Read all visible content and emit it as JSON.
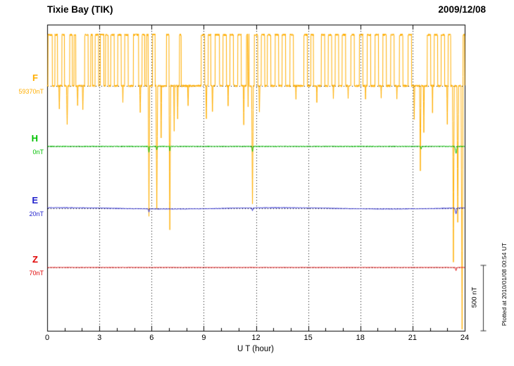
{
  "header": {
    "title": "Tixie Bay (TIK)",
    "date": "2009/12/08"
  },
  "note": "Plotted at 2010/01/08 00:54 UT",
  "chart_data": {
    "type": "line",
    "title": "Tixie Bay (TIK)",
    "date": "2009/12/08",
    "xlabel": "U T (hour)",
    "x_range": [
      0,
      24
    ],
    "x_ticks": [
      0,
      3,
      6,
      9,
      12,
      15,
      18,
      21,
      24
    ],
    "grid_hours": [
      3,
      6,
      9,
      12,
      15,
      18,
      21
    ],
    "scale_bar": {
      "label": "500 nT",
      "nT": 500
    },
    "series": [
      {
        "name": "F",
        "color": "#FFAE00",
        "baseline_label": "59370nT",
        "baseline_nT": 59370,
        "high_offset": 390,
        "noise": 8,
        "pulses": [
          [
            0.05,
            0.3
          ],
          [
            0.45,
            0.6
          ],
          [
            0.85,
            1.0
          ],
          [
            1.3,
            1.45
          ],
          [
            1.55,
            1.65
          ],
          [
            2.15,
            2.35
          ],
          [
            2.5,
            2.6
          ],
          [
            2.75,
            2.95
          ],
          [
            3.05,
            3.25
          ],
          [
            3.35,
            3.5
          ],
          [
            3.65,
            3.85
          ],
          [
            4.05,
            4.25
          ],
          [
            4.45,
            4.65
          ],
          [
            4.95,
            5.25
          ],
          [
            5.45,
            5.6
          ],
          [
            5.7,
            5.8
          ],
          [
            6.05,
            6.2
          ],
          [
            6.85,
            7.0
          ],
          [
            7.6,
            7.7
          ],
          [
            8.85,
            9.05
          ],
          [
            9.25,
            9.4
          ],
          [
            9.65,
            9.9
          ],
          [
            10.1,
            10.3
          ],
          [
            10.5,
            10.7
          ],
          [
            10.95,
            11.15
          ],
          [
            11.45,
            11.6
          ],
          [
            11.9,
            12.1
          ],
          [
            12.3,
            12.5
          ],
          [
            12.65,
            12.85
          ],
          [
            13.1,
            13.3
          ],
          [
            13.5,
            13.7
          ],
          [
            13.95,
            14.15
          ],
          [
            14.75,
            14.95
          ],
          [
            15.15,
            15.3
          ],
          [
            15.75,
            15.95
          ],
          [
            16.15,
            16.35
          ],
          [
            16.55,
            16.75
          ],
          [
            16.95,
            17.15
          ],
          [
            17.45,
            17.65
          ],
          [
            17.95,
            18.15
          ],
          [
            18.4,
            18.6
          ],
          [
            18.85,
            19.05
          ],
          [
            19.3,
            19.5
          ],
          [
            19.75,
            19.95
          ],
          [
            20.25,
            20.45
          ],
          [
            20.75,
            20.95
          ],
          [
            21.85,
            22.05
          ],
          [
            22.25,
            22.45
          ],
          [
            22.65,
            22.85
          ],
          [
            23.05,
            23.2
          ],
          [
            23.9,
            24.0
          ]
        ],
        "dips": [
          [
            0.7,
            180,
            0.03
          ],
          [
            1.15,
            300,
            0.04
          ],
          [
            1.75,
            150,
            0.03
          ],
          [
            2.05,
            180,
            0.03
          ],
          [
            4.35,
            120,
            0.02
          ],
          [
            5.35,
            200,
            0.03
          ],
          [
            5.85,
            1000,
            0.04
          ],
          [
            6.3,
            950,
            0.05
          ],
          [
            6.55,
            400,
            0.03
          ],
          [
            7.05,
            1100,
            0.05
          ],
          [
            7.3,
            350,
            0.03
          ],
          [
            7.5,
            250,
            0.03
          ],
          [
            8.1,
            150,
            0.03
          ],
          [
            9.15,
            250,
            0.03
          ],
          [
            9.5,
            200,
            0.03
          ],
          [
            10.4,
            150,
            0.02
          ],
          [
            11.3,
            300,
            0.03
          ],
          [
            11.55,
            550,
            0.04
          ],
          [
            11.8,
            900,
            0.05
          ],
          [
            12.2,
            200,
            0.03
          ],
          [
            14.3,
            100,
            0.02
          ],
          [
            15.5,
            120,
            0.02
          ],
          [
            16.45,
            100,
            0.02
          ],
          [
            17.3,
            90,
            0.02
          ],
          [
            18.3,
            110,
            0.02
          ],
          [
            19.2,
            90,
            0.02
          ],
          [
            20.1,
            100,
            0.02
          ],
          [
            21.1,
            250,
            0.03
          ],
          [
            21.45,
            650,
            0.04
          ],
          [
            21.65,
            350,
            0.03
          ],
          [
            22.15,
            200,
            0.02
          ],
          [
            23.0,
            300,
            0.03
          ],
          [
            23.35,
            1350,
            0.05
          ],
          [
            23.6,
            1050,
            0.05
          ],
          [
            23.85,
            1900,
            0.06
          ]
        ]
      },
      {
        "name": "H",
        "color": "#00C000",
        "baseline_label": "0nT",
        "baseline_nT": 0,
        "noise": 2.5,
        "dips": [
          [
            5.85,
            45,
            0.05
          ],
          [
            6.3,
            28,
            0.04
          ],
          [
            7.05,
            32,
            0.04
          ],
          [
            11.8,
            38,
            0.05
          ],
          [
            21.5,
            20,
            0.04
          ],
          [
            23.5,
            55,
            0.08
          ]
        ]
      },
      {
        "name": "E",
        "color": "#2222CC",
        "baseline_label": "20nT",
        "baseline_nT": 20,
        "noise": 2,
        "drift": 5,
        "dips": [
          [
            5.85,
            25,
            0.05
          ],
          [
            11.8,
            20,
            0.05
          ],
          [
            23.5,
            45,
            0.08
          ]
        ]
      },
      {
        "name": "Z",
        "color": "#E00000",
        "baseline_label": "70nT",
        "baseline_nT": 70,
        "noise": 1.5,
        "dips": [
          [
            23.5,
            25,
            0.06
          ]
        ]
      }
    ]
  }
}
